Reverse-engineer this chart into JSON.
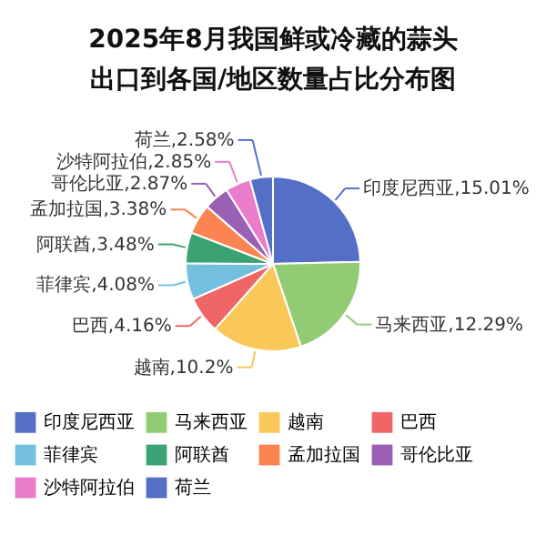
{
  "chart_data": {
    "type": "pie",
    "title": "2025年8月我国鲜或冷藏的蒜头",
    "subtitle": "出口到各国/地区数量占比分布图",
    "categories": [
      "印度尼西亚",
      "马来西亚",
      "越南",
      "巴西",
      "菲律宾",
      "阿联酋",
      "孟加拉国",
      "哥伦比亚",
      "沙特阿拉伯",
      "荷兰"
    ],
    "values": [
      15.01,
      12.29,
      10.2,
      4.16,
      4.08,
      3.48,
      3.38,
      2.87,
      2.85,
      2.58
    ],
    "value_labels": [
      ",15.01%",
      ",12.29%",
      ",10.2%",
      ",4.16%",
      ",4.08%",
      ",3.48%",
      ",3.38%",
      ",2.87%",
      ",2.85%",
      ",2.58%"
    ],
    "colors": [
      "#5470c6",
      "#91cc75",
      "#fac858",
      "#ee6666",
      "#73c0de",
      "#3ba272",
      "#fc8452",
      "#9a60b4",
      "#ea7ccc",
      "#5470c6"
    ],
    "legend": "bottom"
  }
}
